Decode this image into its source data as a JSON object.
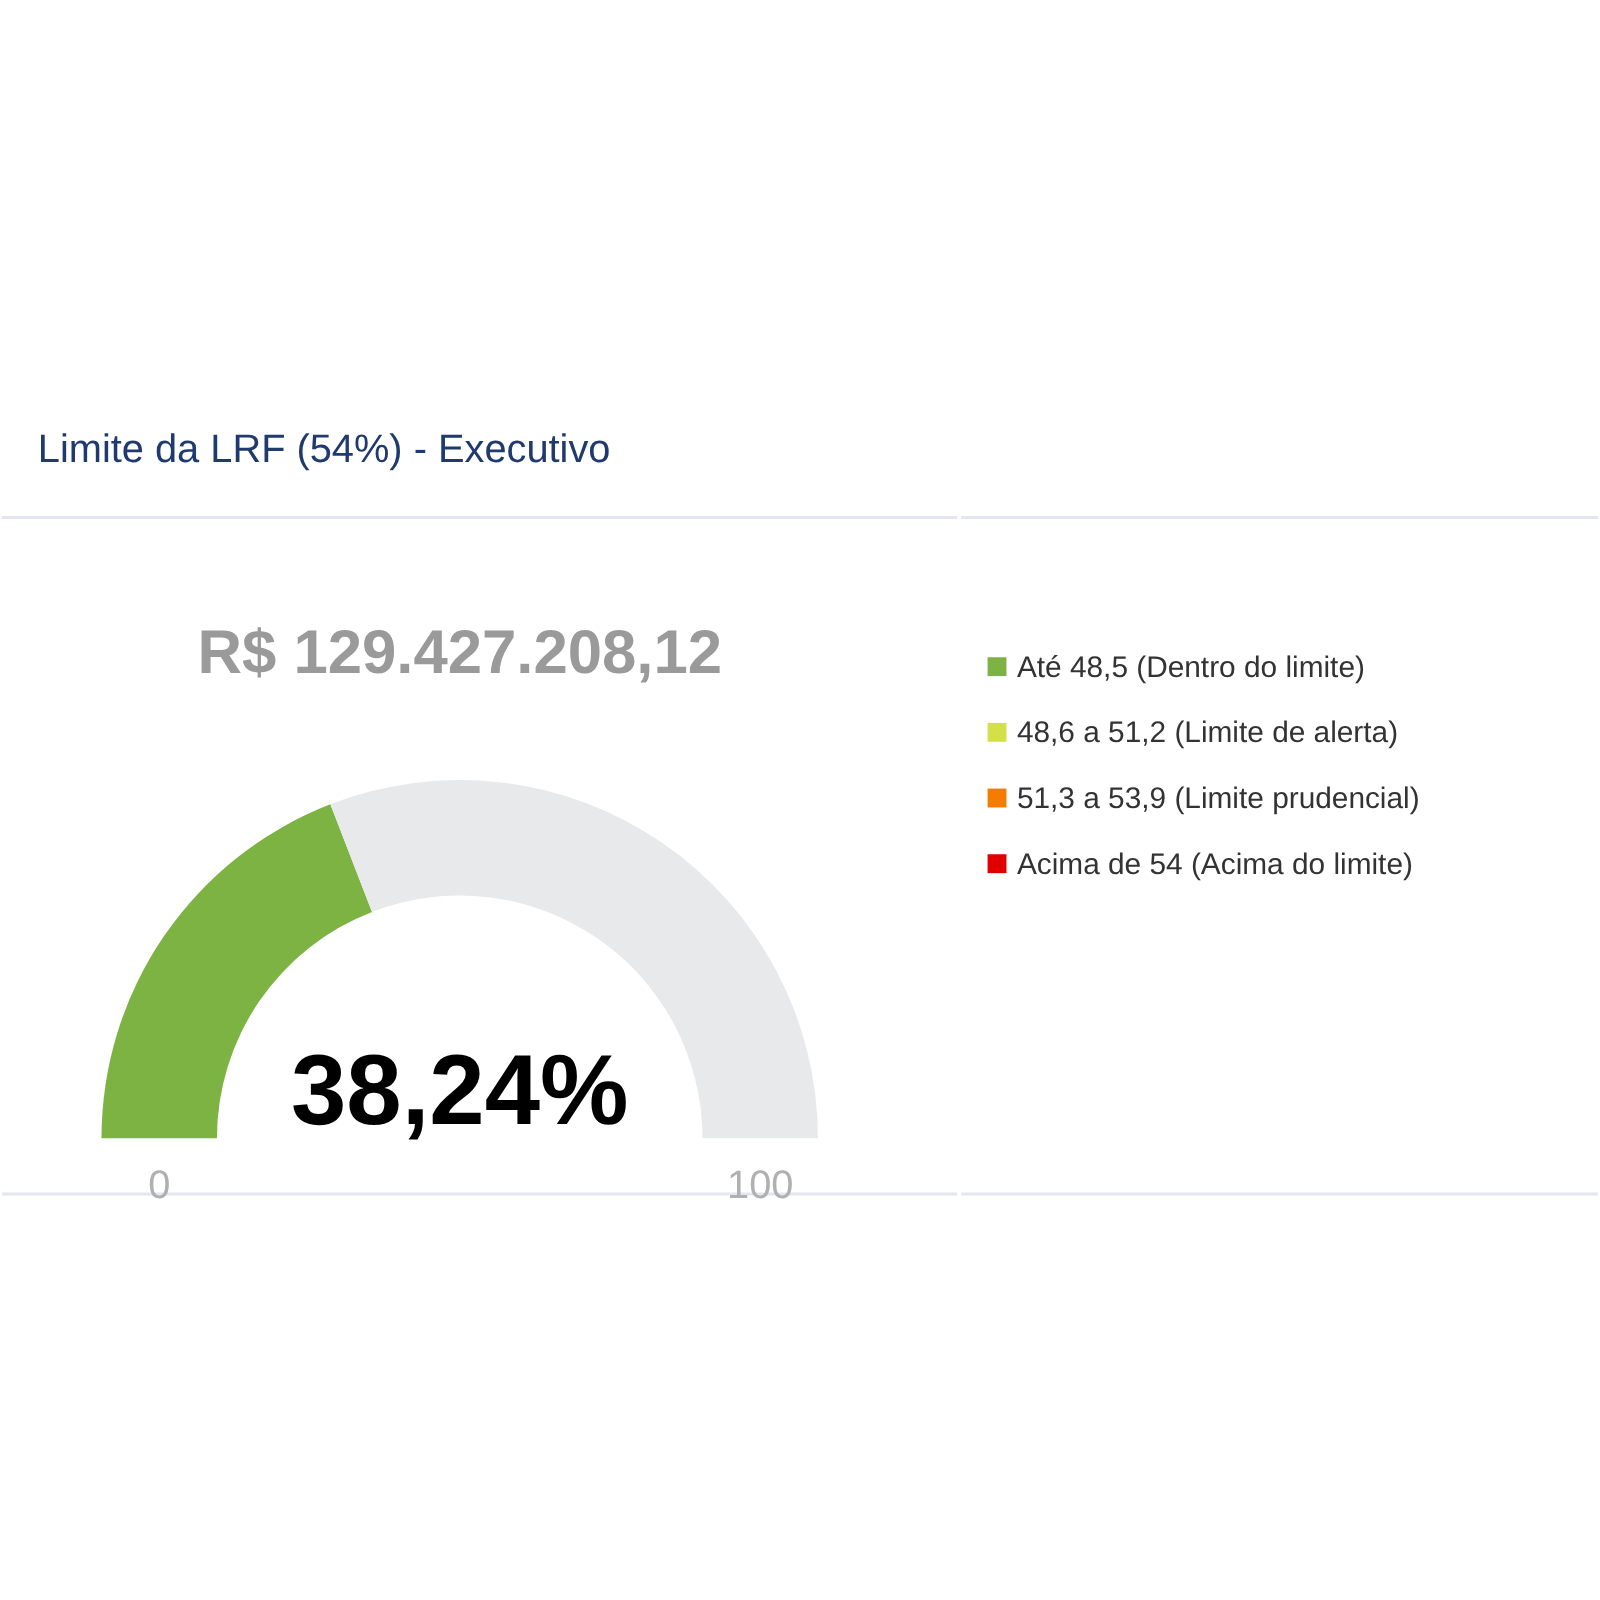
{
  "chart_data": [
    {
      "type": "donut",
      "title": "Limite da LRF (54%) - Executivo",
      "subtitle": "R$ 129.427.208,12",
      "categories": [
        null,
        null
      ],
      "values": [
        38.24,
        61.76
      ],
      "colors": [
        "#7cb342",
        "#e8e9eb"
      ],
      "annotations": [
        "38,24%",
        "0",
        "100"
      ]
    },
    {
      "type": "other",
      "categories": [
        "Até 48,5 (Dentro do limite)",
        "48,6 a 51,2 (Limite de alerta)",
        "51,3 a 53,9 (Limite prudencial)",
        "Acima de 54 (Acima do limite)"
      ],
      "colors": [
        "#7cb342",
        "#d4e04a",
        "#f57c00",
        "#e00000"
      ]
    }
  ]
}
